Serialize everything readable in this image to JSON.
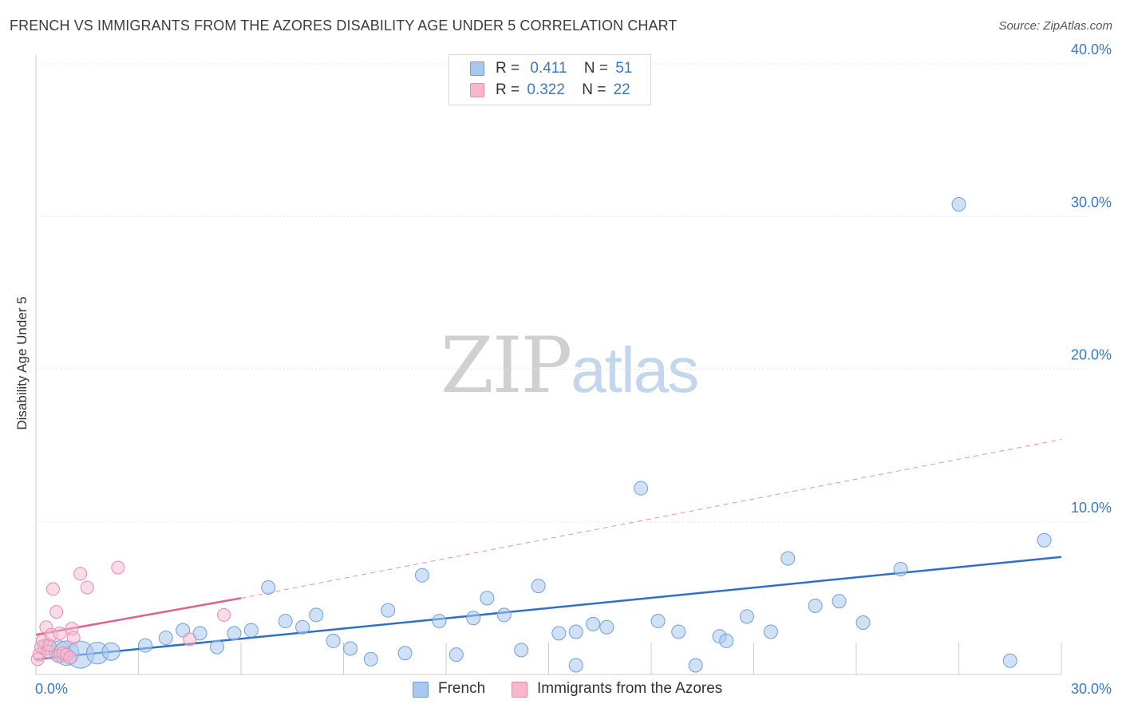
{
  "title": "FRENCH VS IMMIGRANTS FROM THE AZORES DISABILITY AGE UNDER 5 CORRELATION CHART",
  "source": "Source: ZipAtlas.com",
  "watermark": {
    "zip": "ZIP",
    "atlas": "atlas"
  },
  "legend": {
    "french": {
      "r_label": "R =",
      "r_value": "0.411",
      "n_label": "N =",
      "n_value": "51"
    },
    "azores": {
      "r_label": "R =",
      "r_value": "0.322",
      "n_label": "N =",
      "n_value": "22"
    }
  },
  "bottom_legend": {
    "french": "French",
    "azores": "Immigrants from the Azores"
  },
  "colors": {
    "french_fill": "#a9c8ee",
    "french_stroke": "#6f9fd8",
    "french_line": "#2e6fcc",
    "azores_fill": "#f7b8cb",
    "azores_stroke": "#e88aa8",
    "azores_line": "#e0608e",
    "grid": "#e4e4e4",
    "axis_label": "#3a78c8"
  },
  "chart_data": {
    "type": "scatter",
    "title": "FRENCH VS IMMIGRANTS FROM THE AZORES DISABILITY AGE UNDER 5 CORRELATION CHART",
    "xlabel": "",
    "ylabel": "Disability Age Under 5",
    "xlim": [
      0,
      30
    ],
    "ylim": [
      0,
      40
    ],
    "x_tick_labels": [
      "0.0%",
      "30.0%"
    ],
    "y_ticks": [
      10,
      20,
      30,
      40
    ],
    "y_tick_labels": [
      "10.0%",
      "20.0%",
      "30.0%",
      "40.0%"
    ],
    "grid": true,
    "series": [
      {
        "name": "French",
        "r": 0.411,
        "n": 51,
        "points": [
          {
            "x": 0.3,
            "y": 1.8,
            "s": 1.2
          },
          {
            "x": 0.7,
            "y": 1.5,
            "s": 1.6
          },
          {
            "x": 0.9,
            "y": 1.4,
            "s": 1.8
          },
          {
            "x": 1.3,
            "y": 1.3,
            "s": 2.0
          },
          {
            "x": 1.8,
            "y": 1.4,
            "s": 1.6
          },
          {
            "x": 2.2,
            "y": 1.5,
            "s": 1.3
          },
          {
            "x": 3.2,
            "y": 1.9,
            "s": 1.0
          },
          {
            "x": 3.8,
            "y": 2.4,
            "s": 1.0
          },
          {
            "x": 4.3,
            "y": 2.9,
            "s": 1.0
          },
          {
            "x": 4.8,
            "y": 2.7,
            "s": 1.0
          },
          {
            "x": 5.3,
            "y": 1.8,
            "s": 1.0
          },
          {
            "x": 5.8,
            "y": 2.7,
            "s": 1.0
          },
          {
            "x": 6.3,
            "y": 2.9,
            "s": 1.0
          },
          {
            "x": 6.8,
            "y": 5.7,
            "s": 1.0
          },
          {
            "x": 7.3,
            "y": 3.5,
            "s": 1.0
          },
          {
            "x": 7.8,
            "y": 3.1,
            "s": 1.0
          },
          {
            "x": 8.2,
            "y": 3.9,
            "s": 1.0
          },
          {
            "x": 8.7,
            "y": 2.2,
            "s": 1.0
          },
          {
            "x": 9.2,
            "y": 1.7,
            "s": 1.0
          },
          {
            "x": 9.8,
            "y": 1.0,
            "s": 1.0
          },
          {
            "x": 10.3,
            "y": 4.2,
            "s": 1.0
          },
          {
            "x": 10.8,
            "y": 1.4,
            "s": 1.0
          },
          {
            "x": 11.3,
            "y": 6.5,
            "s": 1.0
          },
          {
            "x": 11.8,
            "y": 3.5,
            "s": 1.0
          },
          {
            "x": 12.3,
            "y": 1.3,
            "s": 1.0
          },
          {
            "x": 12.8,
            "y": 3.7,
            "s": 1.0
          },
          {
            "x": 13.2,
            "y": 5.0,
            "s": 1.0
          },
          {
            "x": 13.7,
            "y": 3.9,
            "s": 1.0
          },
          {
            "x": 14.2,
            "y": 1.6,
            "s": 1.0
          },
          {
            "x": 14.7,
            "y": 5.8,
            "s": 1.0
          },
          {
            "x": 15.3,
            "y": 2.7,
            "s": 1.0
          },
          {
            "x": 15.8,
            "y": 0.6,
            "s": 1.0
          },
          {
            "x": 15.8,
            "y": 2.8,
            "s": 1.0
          },
          {
            "x": 16.3,
            "y": 3.3,
            "s": 1.0
          },
          {
            "x": 16.7,
            "y": 3.1,
            "s": 1.0
          },
          {
            "x": 17.7,
            "y": 12.2,
            "s": 1.0
          },
          {
            "x": 18.2,
            "y": 3.5,
            "s": 1.0
          },
          {
            "x": 18.8,
            "y": 2.8,
            "s": 1.0
          },
          {
            "x": 19.3,
            "y": 0.6,
            "s": 1.0
          },
          {
            "x": 20.0,
            "y": 2.5,
            "s": 1.0
          },
          {
            "x": 20.2,
            "y": 2.2,
            "s": 1.0
          },
          {
            "x": 20.8,
            "y": 3.8,
            "s": 1.0
          },
          {
            "x": 21.5,
            "y": 2.8,
            "s": 1.0
          },
          {
            "x": 22.0,
            "y": 7.6,
            "s": 1.0
          },
          {
            "x": 22.8,
            "y": 4.5,
            "s": 1.0
          },
          {
            "x": 23.5,
            "y": 4.8,
            "s": 1.0
          },
          {
            "x": 24.2,
            "y": 3.4,
            "s": 1.0
          },
          {
            "x": 25.3,
            "y": 6.9,
            "s": 1.0
          },
          {
            "x": 27.0,
            "y": 30.8,
            "s": 1.0
          },
          {
            "x": 28.5,
            "y": 0.9,
            "s": 1.0
          },
          {
            "x": 29.5,
            "y": 8.8,
            "s": 1.0
          }
        ],
        "trend": {
          "x0": 0,
          "y0": 1.0,
          "x1": 30,
          "y1": 7.7
        }
      },
      {
        "name": "Immigrants from the Azores",
        "r": 0.322,
        "n": 22,
        "points": [
          {
            "x": 0.05,
            "y": 1.0,
            "s": 1.0
          },
          {
            "x": 0.1,
            "y": 1.3,
            "s": 1.0
          },
          {
            "x": 0.15,
            "y": 1.8,
            "s": 1.0
          },
          {
            "x": 0.2,
            "y": 2.2,
            "s": 1.0
          },
          {
            "x": 0.3,
            "y": 3.1,
            "s": 1.0
          },
          {
            "x": 0.35,
            "y": 1.5,
            "s": 1.0
          },
          {
            "x": 0.4,
            "y": 1.9,
            "s": 1.0
          },
          {
            "x": 0.45,
            "y": 2.6,
            "s": 1.0
          },
          {
            "x": 0.5,
            "y": 5.6,
            "s": 1.0
          },
          {
            "x": 0.6,
            "y": 4.1,
            "s": 1.0
          },
          {
            "x": 0.65,
            "y": 1.2,
            "s": 1.0
          },
          {
            "x": 0.7,
            "y": 2.7,
            "s": 1.0
          },
          {
            "x": 0.8,
            "y": 1.4,
            "s": 1.0
          },
          {
            "x": 0.9,
            "y": 1.3,
            "s": 1.0
          },
          {
            "x": 1.0,
            "y": 1.1,
            "s": 1.0
          },
          {
            "x": 1.05,
            "y": 3.0,
            "s": 1.0
          },
          {
            "x": 1.1,
            "y": 2.4,
            "s": 1.0
          },
          {
            "x": 1.3,
            "y": 6.6,
            "s": 1.0
          },
          {
            "x": 1.5,
            "y": 5.7,
            "s": 1.0
          },
          {
            "x": 2.4,
            "y": 7.0,
            "s": 1.0
          },
          {
            "x": 4.5,
            "y": 2.3,
            "s": 1.0
          },
          {
            "x": 5.5,
            "y": 3.9,
            "s": 1.0
          }
        ],
        "trend_solid": {
          "x0": 0,
          "y0": 2.6,
          "x1": 6.0,
          "y1": 5.0
        },
        "trend_dashed": {
          "x0": 6.0,
          "y0": 5.0,
          "x1": 30,
          "y1": 15.4
        }
      }
    ]
  }
}
